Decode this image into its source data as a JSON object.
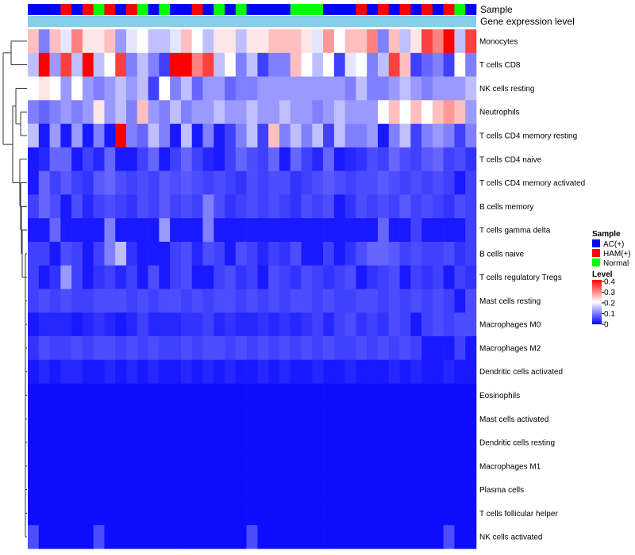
{
  "chart_data": {
    "type": "heatmap",
    "title": "",
    "annotation_labels": [
      "Sample",
      "Gene expression level"
    ],
    "rows": [
      "Monocytes",
      "T cells CD8",
      "NK cells resting",
      "Neutrophils",
      "T cells CD4 memory resting",
      "T cells CD4 naive",
      "T cells CD4 memory activated",
      "B cells memory",
      "T cells gamma delta",
      "B cells naive",
      "T cells regulatory  Tregs",
      "Mast cells resting",
      "Macrophages M0",
      "Macrophages M2",
      "Dendritic cells activated",
      "Eosinophils",
      "Mast cells activated",
      "Dendritic cells resting",
      "Macrophages M1",
      "Plasma cells",
      "T cells follicular helper",
      "NK cells activated"
    ],
    "sample_groups": [
      "AC",
      "AC",
      "AC",
      "HAM",
      "AC",
      "HAM",
      "Normal",
      "HAM",
      "AC",
      "HAM",
      "Normal",
      "AC",
      "Normal",
      "AC",
      "AC",
      "HAM",
      "AC",
      "Normal",
      "AC",
      "Normal",
      "AC",
      "AC",
      "AC",
      "AC",
      "Normal",
      "Normal",
      "Normal",
      "AC",
      "AC",
      "AC",
      "HAM",
      "AC",
      "HAM",
      "AC",
      "HAM",
      "AC",
      "HAM",
      "AC",
      "HAM",
      "Normal",
      "AC"
    ],
    "values": [
      [
        0.25,
        0.1,
        0.25,
        0.18,
        0.3,
        0.22,
        0.22,
        0.25,
        0.12,
        0.18,
        0.2,
        0.15,
        0.15,
        0.18,
        0.25,
        0.2,
        0.15,
        0.22,
        0.22,
        0.15,
        0.22,
        0.22,
        0.25,
        0.25,
        0.25,
        0.22,
        0.18,
        0.28,
        0.2,
        0.25,
        0.25,
        0.3,
        0.1,
        0.25,
        0.15,
        0.22,
        0.35,
        0.3,
        0.4,
        0.15,
        0.35
      ],
      [
        0.15,
        0.4,
        0.12,
        0.35,
        0.15,
        0.4,
        0.15,
        0.2,
        0.35,
        0.1,
        0.15,
        0.1,
        0.05,
        0.4,
        0.4,
        0.3,
        0.35,
        0.15,
        0.2,
        0.1,
        0.15,
        0.05,
        0.1,
        0.1,
        0.25,
        0.2,
        0.15,
        0.2,
        0.05,
        0.18,
        0.2,
        0.1,
        0.15,
        0.35,
        0.25,
        0.05,
        0.08,
        0.1,
        0.05,
        0.2,
        0.1
      ],
      [
        0.2,
        0.22,
        0.2,
        0.12,
        0.2,
        0.12,
        0.1,
        0.12,
        0.15,
        0.12,
        0.15,
        0.05,
        0.2,
        0.1,
        0.15,
        0.08,
        0.12,
        0.12,
        0.08,
        0.1,
        0.1,
        0.12,
        0.12,
        0.12,
        0.12,
        0.12,
        0.12,
        0.12,
        0.12,
        0.1,
        0.15,
        0.1,
        0.1,
        0.12,
        0.15,
        0.12,
        0.1,
        0.12,
        0.12,
        0.12,
        0.15
      ],
      [
        0.1,
        0.08,
        0.1,
        0.12,
        0.1,
        0.12,
        0.22,
        0.12,
        0.15,
        0.1,
        0.25,
        0.12,
        0.1,
        0.15,
        0.1,
        0.12,
        0.12,
        0.15,
        0.12,
        0.12,
        0.15,
        0.12,
        0.12,
        0.15,
        0.12,
        0.12,
        0.1,
        0.12,
        0.15,
        0.12,
        0.12,
        0.12,
        0.2,
        0.25,
        0.2,
        0.25,
        0.2,
        0.25,
        0.28,
        0.25,
        0.12
      ],
      [
        0.15,
        0.02,
        0.12,
        0.02,
        0.12,
        0.02,
        0.1,
        0.02,
        0.4,
        0.1,
        0.08,
        0.15,
        0.1,
        0.02,
        0.15,
        0.02,
        0.1,
        0.02,
        0.05,
        0.1,
        0.15,
        0.05,
        0.25,
        0.1,
        0.15,
        0.1,
        0.15,
        0.05,
        0.15,
        0.1,
        0.1,
        0.12,
        0.02,
        0.1,
        0.15,
        0.05,
        0.1,
        0.12,
        0.1,
        0.05,
        0.1
      ],
      [
        0.02,
        0.03,
        0.08,
        0.08,
        0.02,
        0.05,
        0.03,
        0.08,
        0.02,
        0.02,
        0.05,
        0.08,
        0.02,
        0.05,
        0.08,
        0.05,
        0.03,
        0.02,
        0.05,
        0.08,
        0.06,
        0.05,
        0.08,
        0.02,
        0.08,
        0.05,
        0.03,
        0.08,
        0.02,
        0.03,
        0.04,
        0.06,
        0.05,
        0.08,
        0.06,
        0.05,
        0.07,
        0.08,
        0.05,
        0.06,
        0.04
      ],
      [
        0.02,
        0.08,
        0.05,
        0.07,
        0.05,
        0.04,
        0.07,
        0.08,
        0.06,
        0.05,
        0.06,
        0.05,
        0.07,
        0.06,
        0.07,
        0.06,
        0.05,
        0.06,
        0.05,
        0.04,
        0.06,
        0.05,
        0.06,
        0.06,
        0.04,
        0.05,
        0.06,
        0.07,
        0.06,
        0.05,
        0.06,
        0.06,
        0.07,
        0.06,
        0.05,
        0.06,
        0.05,
        0.06,
        0.05,
        0.02,
        0.05
      ],
      [
        0.05,
        0.08,
        0.06,
        0.02,
        0.06,
        0.03,
        0.05,
        0.06,
        0.05,
        0.04,
        0.06,
        0.05,
        0.07,
        0.05,
        0.06,
        0.05,
        0.1,
        0.06,
        0.04,
        0.05,
        0.06,
        0.05,
        0.06,
        0.05,
        0.04,
        0.06,
        0.05,
        0.06,
        0.02,
        0.04,
        0.06,
        0.05,
        0.06,
        0.05,
        0.07,
        0.05,
        0.06,
        0.05,
        0.04,
        0.06,
        0.05
      ],
      [
        0.02,
        0.02,
        0.08,
        0.02,
        0.02,
        0.02,
        0.02,
        0.1,
        0.02,
        0.02,
        0.02,
        0.02,
        0.12,
        0.02,
        0.02,
        0.02,
        0.1,
        0.02,
        0.02,
        0.02,
        0.02,
        0.02,
        0.02,
        0.02,
        0.02,
        0.02,
        0.02,
        0.02,
        0.02,
        0.02,
        0.02,
        0.02,
        0.08,
        0.02,
        0.02,
        0.05,
        0.02,
        0.02,
        0.02,
        0.02,
        0.05
      ],
      [
        0.05,
        0.05,
        0.02,
        0.06,
        0.05,
        0.02,
        0.05,
        0.1,
        0.15,
        0.04,
        0.02,
        0.02,
        0.02,
        0.05,
        0.06,
        0.03,
        0.06,
        0.05,
        0.02,
        0.06,
        0.05,
        0.03,
        0.05,
        0.04,
        0.06,
        0.02,
        0.02,
        0.05,
        0.02,
        0.04,
        0.06,
        0.08,
        0.08,
        0.07,
        0.05,
        0.06,
        0.05,
        0.05,
        0.06,
        0.04,
        0.05
      ],
      [
        0.05,
        0.02,
        0.04,
        0.12,
        0.05,
        0.02,
        0.04,
        0.05,
        0.03,
        0.05,
        0.02,
        0.06,
        0.02,
        0.05,
        0.06,
        0.02,
        0.02,
        0.05,
        0.06,
        0.04,
        0.05,
        0.02,
        0.06,
        0.05,
        0.04,
        0.06,
        0.05,
        0.04,
        0.05,
        0.06,
        0.02,
        0.04,
        0.05,
        0.06,
        0.02,
        0.05,
        0.04,
        0.05,
        0.02,
        0.05,
        0.04
      ],
      [
        0.05,
        0.06,
        0.05,
        0.06,
        0.05,
        0.05,
        0.06,
        0.06,
        0.06,
        0.05,
        0.06,
        0.05,
        0.06,
        0.06,
        0.05,
        0.06,
        0.05,
        0.06,
        0.06,
        0.05,
        0.06,
        0.05,
        0.06,
        0.05,
        0.06,
        0.06,
        0.05,
        0.06,
        0.05,
        0.05,
        0.06,
        0.06,
        0.05,
        0.06,
        0.05,
        0.06,
        0.05,
        0.06,
        0.05,
        0.02,
        0.06
      ],
      [
        0.02,
        0.03,
        0.03,
        0.03,
        0.02,
        0.03,
        0.04,
        0.03,
        0.02,
        0.03,
        0.05,
        0.03,
        0.03,
        0.03,
        0.04,
        0.04,
        0.05,
        0.03,
        0.04,
        0.03,
        0.03,
        0.04,
        0.03,
        0.04,
        0.03,
        0.04,
        0.05,
        0.03,
        0.05,
        0.06,
        0.04,
        0.05,
        0.04,
        0.06,
        0.05,
        0.02,
        0.05,
        0.06,
        0.05,
        0.06,
        0.06
      ],
      [
        0.04,
        0.06,
        0.05,
        0.05,
        0.06,
        0.05,
        0.06,
        0.06,
        0.05,
        0.06,
        0.05,
        0.06,
        0.05,
        0.05,
        0.06,
        0.05,
        0.06,
        0.06,
        0.05,
        0.06,
        0.05,
        0.06,
        0.05,
        0.06,
        0.05,
        0.06,
        0.05,
        0.06,
        0.05,
        0.05,
        0.06,
        0.05,
        0.06,
        0.05,
        0.06,
        0.05,
        0.02,
        0.02,
        0.02,
        0.05,
        0.02
      ],
      [
        0.02,
        0.03,
        0.02,
        0.03,
        0.03,
        0.02,
        0.02,
        0.03,
        0.02,
        0.03,
        0.02,
        0.03,
        0.02,
        0.02,
        0.03,
        0.02,
        0.03,
        0.02,
        0.03,
        0.02,
        0.02,
        0.03,
        0.02,
        0.03,
        0.02,
        0.02,
        0.03,
        0.02,
        0.02,
        0.03,
        0.02,
        0.02,
        0.02,
        0.03,
        0.02,
        0.03,
        0.02,
        0.02,
        0.03,
        0.02,
        0.02
      ],
      [
        0.01,
        0.01,
        0.01,
        0.01,
        0.01,
        0.01,
        0.01,
        0.01,
        0.01,
        0.01,
        0.01,
        0.01,
        0.01,
        0.01,
        0.01,
        0.01,
        0.01,
        0.01,
        0.01,
        0.01,
        0.01,
        0.01,
        0.01,
        0.01,
        0.01,
        0.01,
        0.01,
        0.01,
        0.01,
        0.01,
        0.01,
        0.01,
        0.01,
        0.01,
        0.01,
        0.01,
        0.01,
        0.01,
        0.01,
        0.01,
        0.01
      ],
      [
        0.01,
        0.01,
        0.01,
        0.01,
        0.01,
        0.01,
        0.01,
        0.01,
        0.01,
        0.01,
        0.01,
        0.01,
        0.01,
        0.01,
        0.01,
        0.01,
        0.01,
        0.01,
        0.01,
        0.01,
        0.01,
        0.01,
        0.01,
        0.01,
        0.01,
        0.01,
        0.01,
        0.01,
        0.01,
        0.01,
        0.01,
        0.01,
        0.01,
        0.01,
        0.01,
        0.01,
        0.01,
        0.01,
        0.01,
        0.01,
        0.01
      ],
      [
        0.01,
        0.01,
        0.01,
        0.01,
        0.01,
        0.01,
        0.01,
        0.01,
        0.01,
        0.01,
        0.01,
        0.01,
        0.01,
        0.01,
        0.01,
        0.01,
        0.01,
        0.01,
        0.01,
        0.01,
        0.01,
        0.01,
        0.01,
        0.01,
        0.01,
        0.01,
        0.01,
        0.01,
        0.01,
        0.01,
        0.01,
        0.01,
        0.01,
        0.01,
        0.01,
        0.01,
        0.01,
        0.01,
        0.01,
        0.01,
        0.01
      ],
      [
        0.01,
        0.01,
        0.01,
        0.01,
        0.01,
        0.01,
        0.01,
        0.01,
        0.01,
        0.01,
        0.01,
        0.01,
        0.01,
        0.01,
        0.01,
        0.01,
        0.01,
        0.01,
        0.01,
        0.01,
        0.01,
        0.01,
        0.01,
        0.01,
        0.01,
        0.01,
        0.01,
        0.01,
        0.01,
        0.01,
        0.01,
        0.01,
        0.01,
        0.01,
        0.01,
        0.01,
        0.01,
        0.01,
        0.01,
        0.01,
        0.01
      ],
      [
        0.01,
        0.01,
        0.01,
        0.01,
        0.01,
        0.01,
        0.01,
        0.01,
        0.01,
        0.01,
        0.01,
        0.01,
        0.01,
        0.01,
        0.01,
        0.01,
        0.01,
        0.01,
        0.01,
        0.01,
        0.01,
        0.01,
        0.01,
        0.01,
        0.01,
        0.01,
        0.01,
        0.01,
        0.01,
        0.01,
        0.01,
        0.01,
        0.01,
        0.01,
        0.01,
        0.01,
        0.01,
        0.01,
        0.01,
        0.01,
        0.01
      ],
      [
        0.01,
        0.01,
        0.01,
        0.01,
        0.01,
        0.01,
        0.01,
        0.01,
        0.01,
        0.01,
        0.01,
        0.01,
        0.01,
        0.01,
        0.01,
        0.01,
        0.01,
        0.01,
        0.01,
        0.01,
        0.01,
        0.01,
        0.01,
        0.01,
        0.01,
        0.01,
        0.01,
        0.01,
        0.01,
        0.01,
        0.01,
        0.01,
        0.01,
        0.01,
        0.01,
        0.01,
        0.01,
        0.01,
        0.01,
        0.01,
        0.01
      ],
      [
        0.06,
        0.01,
        0.01,
        0.01,
        0.01,
        0.01,
        0.06,
        0.01,
        0.01,
        0.01,
        0.01,
        0.01,
        0.01,
        0.01,
        0.01,
        0.01,
        0.01,
        0.01,
        0.01,
        0.01,
        0.06,
        0.01,
        0.01,
        0.01,
        0.01,
        0.01,
        0.01,
        0.01,
        0.01,
        0.01,
        0.01,
        0.01,
        0.01,
        0.01,
        0.01,
        0.01,
        0.01,
        0.01,
        0.06,
        0.01,
        0.01
      ]
    ],
    "color_scale": {
      "min": 0,
      "max": 0.4,
      "colors": [
        "#0000ff",
        "#ffffff",
        "#ff0000"
      ]
    },
    "legend": {
      "sample_title": "Sample",
      "sample_entries": [
        {
          "label": "AC(+)",
          "color": "#0000ff"
        },
        {
          "label": "HAM(+)",
          "color": "#ff0000"
        },
        {
          "label": "Normal",
          "color": "#00ff00"
        }
      ],
      "level_title": "Level",
      "level_ticks": [
        "0.4",
        "0.3",
        "0.2",
        "0.1",
        "0"
      ],
      "position": "right"
    },
    "colors": {
      "AC": "#0000ff",
      "HAM": "#ff0000",
      "Normal": "#00ff00",
      "gene_expression_bar": "#87ceeb"
    }
  }
}
